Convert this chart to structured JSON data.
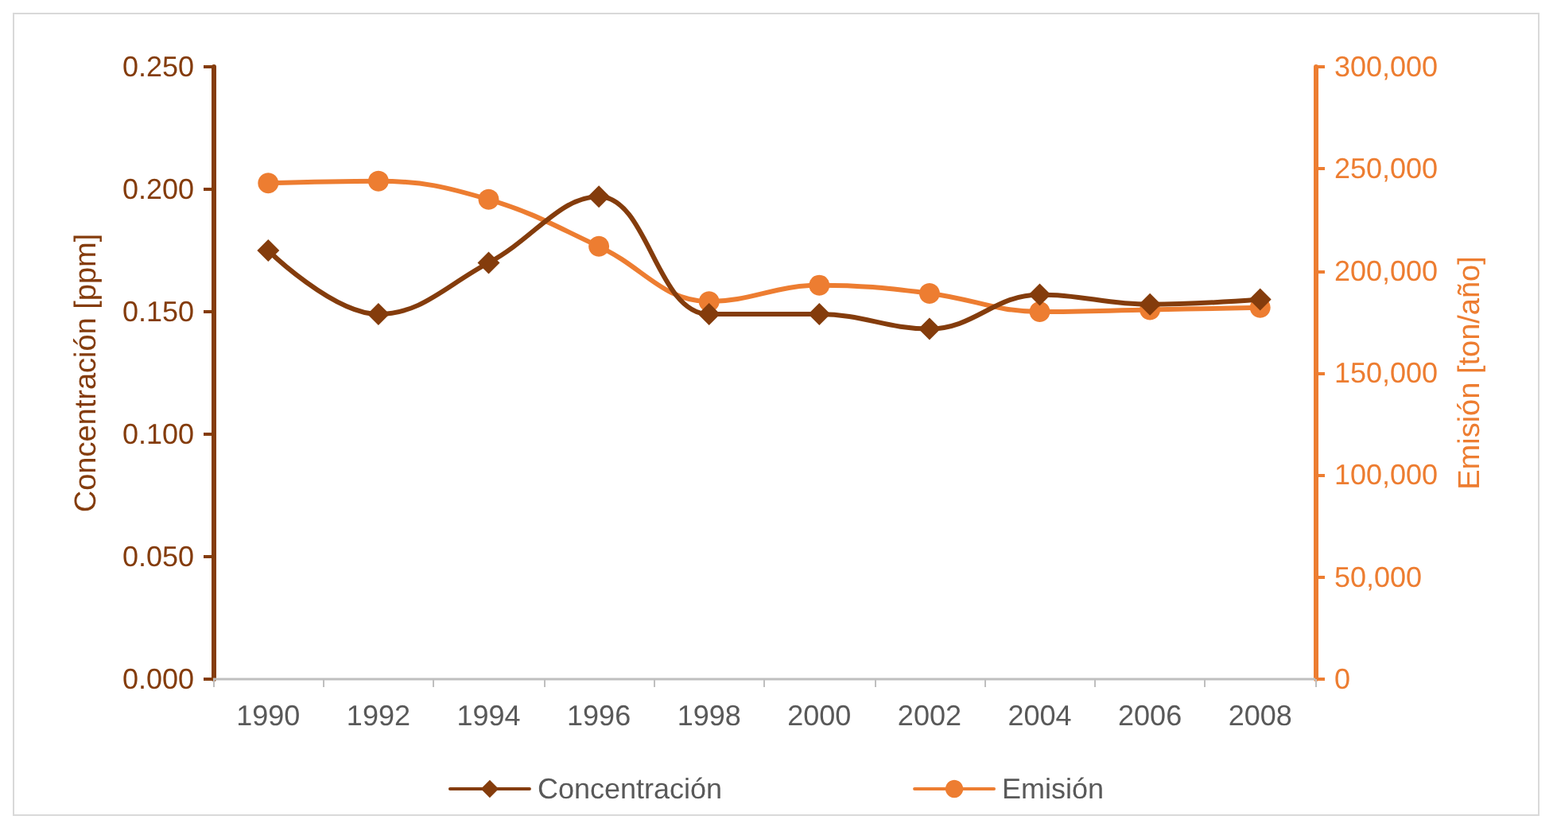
{
  "chart_data": {
    "type": "line",
    "categories": [
      "1990",
      "1992",
      "1994",
      "1996",
      "1998",
      "2000",
      "2002",
      "2004",
      "2006",
      "2008"
    ],
    "ylabel": "Concentración [ppm]",
    "y2label": "Emisión [ton/año]",
    "ylim": [
      0,
      0.25
    ],
    "yticks": [
      {
        "value": 0,
        "label": "0.000"
      },
      {
        "value": 0.05,
        "label": "0.050"
      },
      {
        "value": 0.1,
        "label": "0.100"
      },
      {
        "value": 0.15,
        "label": "0.150"
      },
      {
        "value": 0.2,
        "label": "0.200"
      },
      {
        "value": 0.25,
        "label": "0.250"
      }
    ],
    "y2lim": [
      0,
      300000
    ],
    "y2ticks": [
      {
        "value": 0,
        "label": "0"
      },
      {
        "value": 50000,
        "label": "50,000"
      },
      {
        "value": 100000,
        "label": "100,000"
      },
      {
        "value": 150000,
        "label": "150,000"
      },
      {
        "value": 200000,
        "label": "200,000"
      },
      {
        "value": 250000,
        "label": "250,000"
      },
      {
        "value": 300000,
        "label": "300,000"
      }
    ],
    "series": [
      {
        "name": "Concentración",
        "color": "#843c0c",
        "marker": "diamond",
        "values": [
          0.175,
          0.149,
          0.17,
          0.197,
          0.149,
          0.149,
          0.143,
          0.157,
          0.153,
          0.155
        ]
      },
      {
        "name": "Emisión",
        "color": "#ed7d31",
        "marker": "circle",
        "axis": "y2",
        "values": [
          243000,
          244000,
          235000,
          212000,
          185000,
          193000,
          189000,
          180000,
          181000,
          182000
        ]
      }
    ],
    "grid": false,
    "legend": "bottom"
  }
}
